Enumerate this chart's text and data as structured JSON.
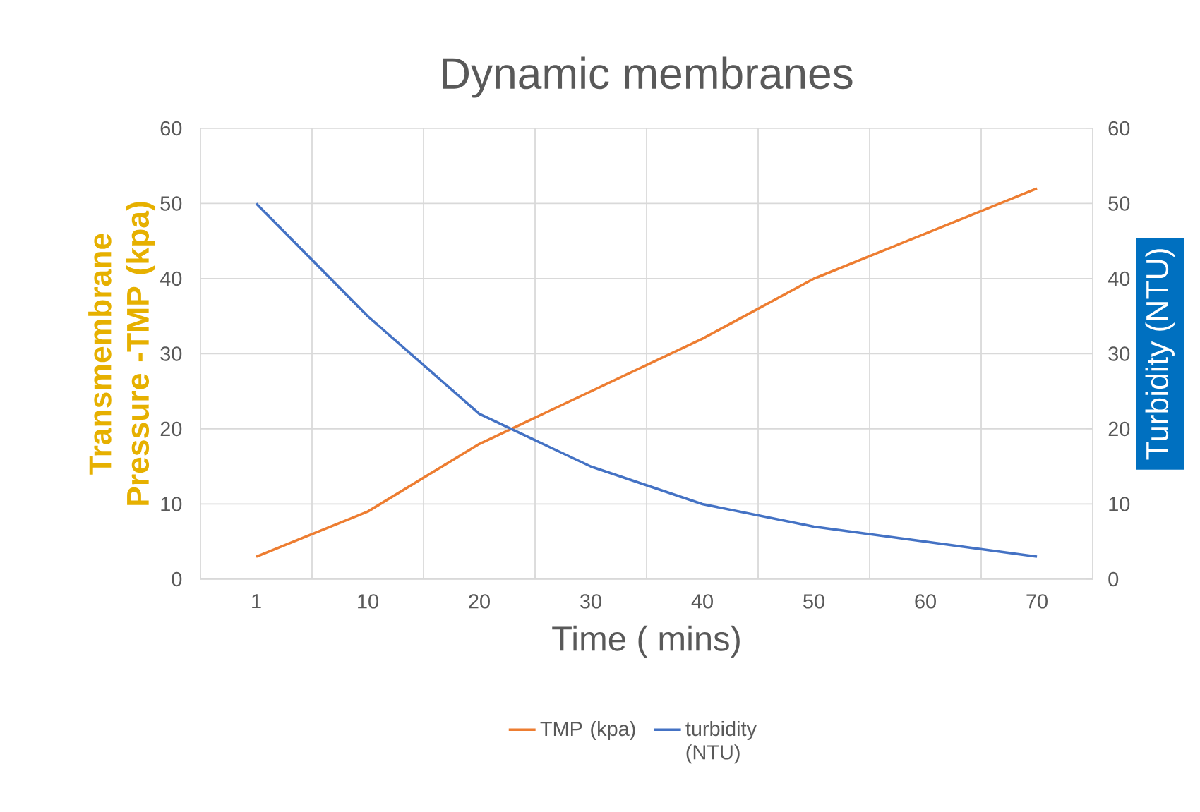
{
  "chart_data": {
    "type": "line",
    "title": "Dynamic membranes",
    "xlabel": "Time (  mins)",
    "ylabel": "Transmembrane Pressure -TMP (kpa)",
    "y2label": "Turbidity (NTU)",
    "categories": [
      "1",
      "10",
      "20",
      "30",
      "40",
      "50",
      "60",
      "70"
    ],
    "series": [
      {
        "name": "TMP (kpa)",
        "color": "#ed7d31",
        "values": [
          3,
          9,
          18,
          25,
          32,
          40,
          46,
          52
        ]
      },
      {
        "name": "turbidity (NTU)",
        "color": "#4472c4",
        "axis": "y2",
        "values": [
          50,
          35,
          22,
          15,
          10,
          7,
          5,
          3
        ]
      }
    ],
    "ylim": [
      0,
      60
    ],
    "yticks": [
      0,
      10,
      20,
      30,
      40,
      50,
      60
    ],
    "y2lim": [
      0,
      60
    ],
    "y2ticks": [
      0,
      10,
      20,
      30,
      40,
      50,
      60
    ],
    "grid": true,
    "legend": "bottom",
    "marker": "none",
    "line_style": "solid"
  }
}
